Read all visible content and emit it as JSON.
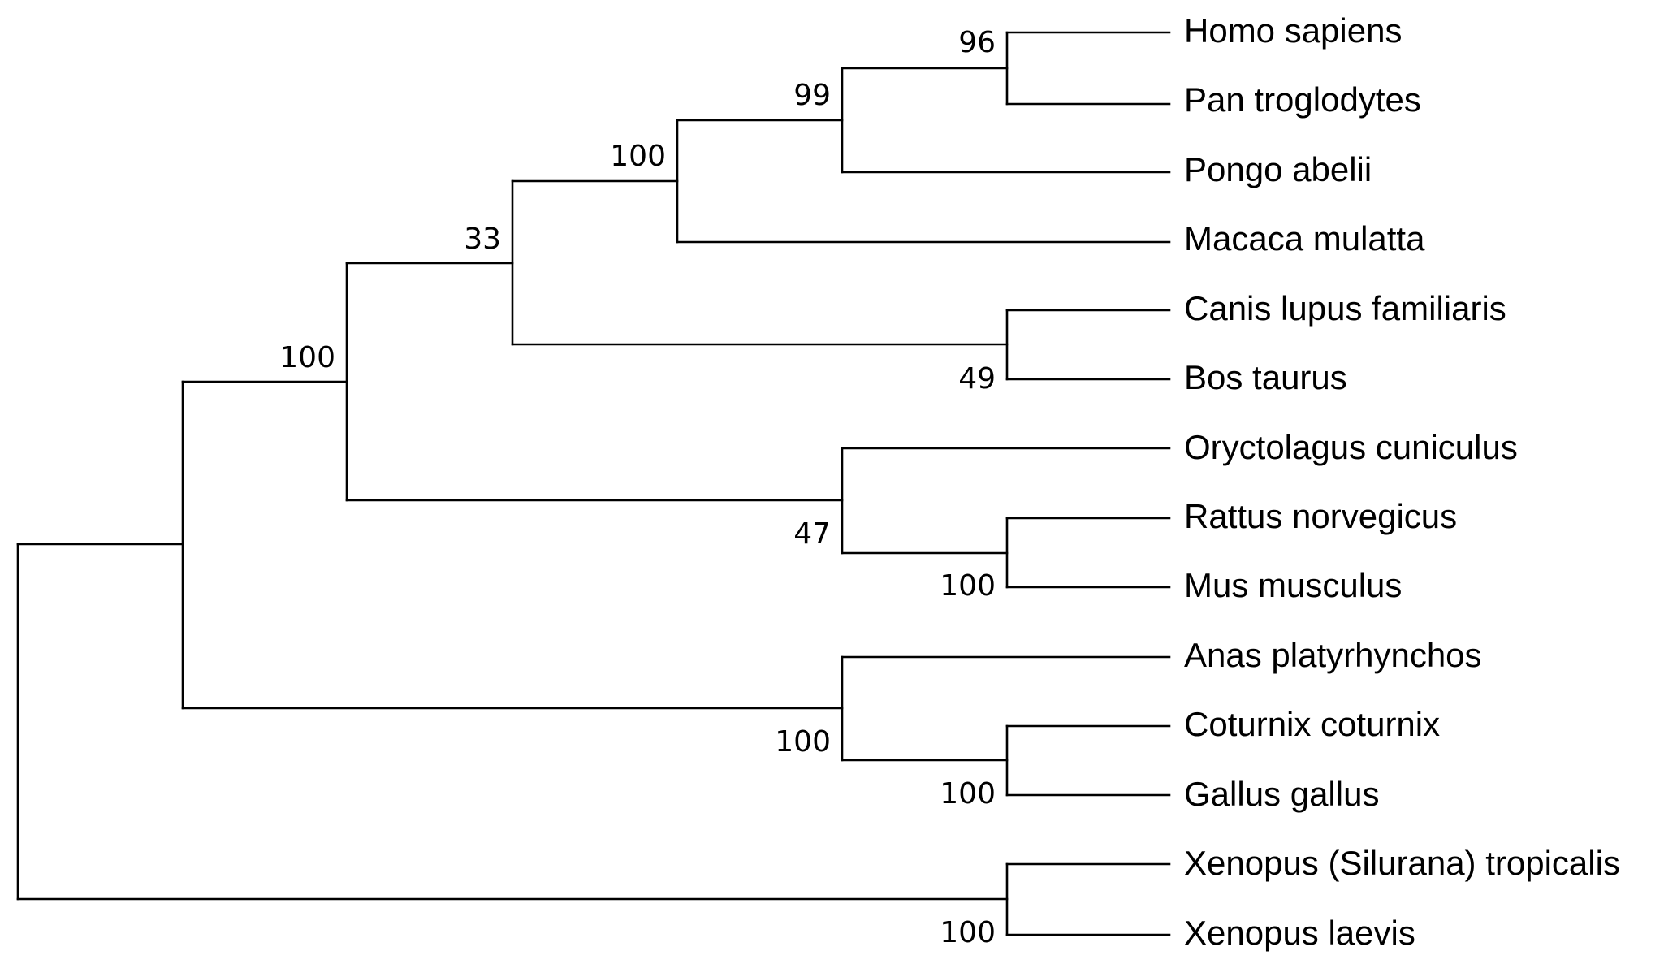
{
  "tree": {
    "taxa": [
      "Homo sapiens",
      "Pan troglodytes",
      "Pongo abelii",
      "Macaca mulatta",
      "Canis lupus familiaris",
      "Bos taurus",
      "Oryctolagus cuniculus",
      "Rattus norvegicus",
      "Mus musculus",
      "Anas platyrhynchos",
      "Coturnix coturnix",
      "Gallus gallus",
      "Xenopus (Silurana) tropicalis",
      "Xenopus laevis"
    ],
    "support_values": {
      "homo_pan": "96",
      "homo_pan_pongo": "99",
      "primates": "100",
      "primates_laurasiatheria": "33",
      "canis_bos": "49",
      "mammals": "100",
      "rabbit_rodents": "47",
      "rattus_mus": "100",
      "birds": "100",
      "coturnix_gallus": "100",
      "xenopus": "100"
    }
  }
}
